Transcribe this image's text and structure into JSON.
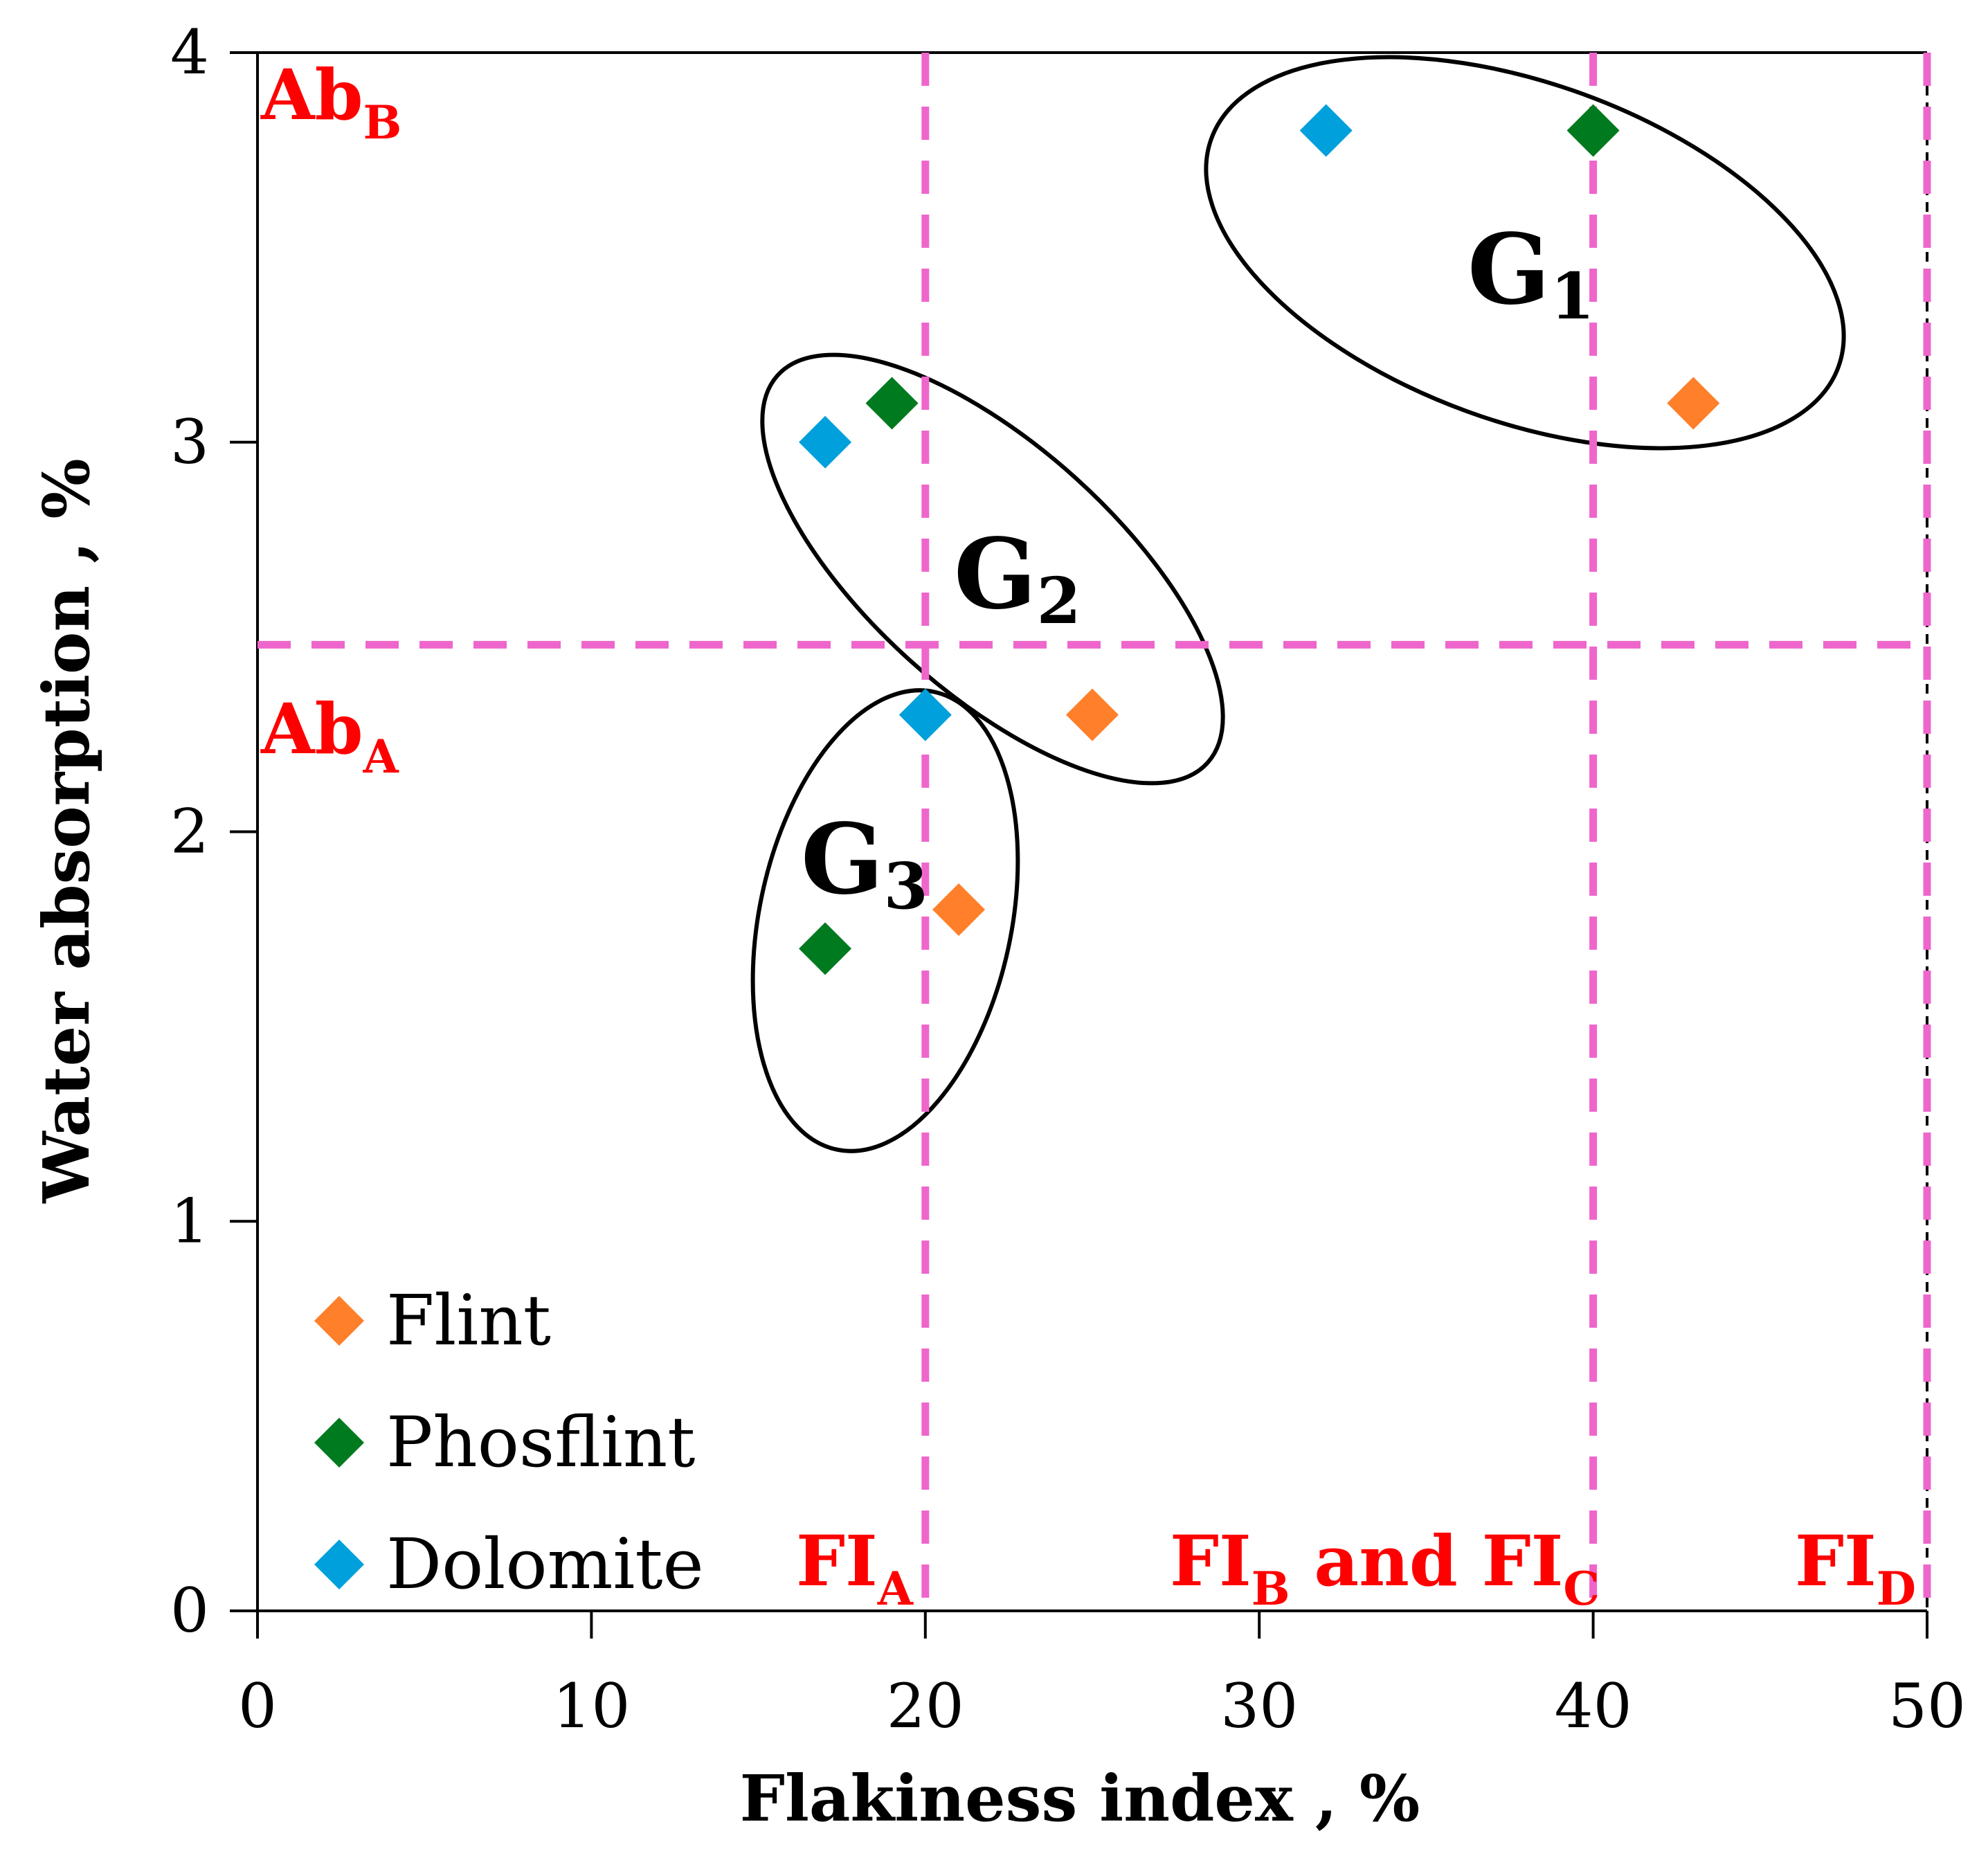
{
  "chart_data": {
    "type": "scatter",
    "xlabel": "Flakiness index , %",
    "ylabel": "Water absorption , %",
    "xlim": [
      0,
      50
    ],
    "ylim": [
      0,
      4
    ],
    "xticks": [
      "0",
      "10",
      "20",
      "30",
      "40",
      "50"
    ],
    "yticks": [
      "0",
      "1",
      "2",
      "3",
      "4"
    ],
    "series": [
      {
        "name": "Flint",
        "color": "#ff7f2a",
        "points": [
          [
            43,
            3.1
          ],
          [
            25,
            2.3
          ],
          [
            21,
            1.8
          ]
        ]
      },
      {
        "name": "Phosflint",
        "color": "#007a1f",
        "points": [
          [
            40,
            3.8
          ],
          [
            19,
            3.1
          ],
          [
            17,
            1.7
          ]
        ]
      },
      {
        "name": "Dolomite",
        "color": "#00a0dc",
        "points": [
          [
            32,
            3.8
          ],
          [
            17,
            3.0
          ],
          [
            20,
            2.3
          ]
        ]
      }
    ],
    "threshold_color": "#ee66cc",
    "label_color": "#ff0000",
    "vertical_thresholds": [
      {
        "x": 20,
        "main": "FI",
        "sub": "A"
      },
      {
        "x": 40,
        "main": "FI",
        "sub_b": "B",
        "joiner": " and FI",
        "sub_c": "C"
      },
      {
        "x": 50,
        "main": "FI",
        "sub": "D"
      }
    ],
    "horizontal_thresholds": [
      {
        "y": 2.48
      }
    ],
    "ab_labels": [
      {
        "main": "Ab",
        "sub": "B"
      },
      {
        "main": "Ab",
        "sub": "A"
      }
    ],
    "groups": [
      {
        "main": "G",
        "sub": "1"
      },
      {
        "main": "G",
        "sub": "2"
      },
      {
        "main": "G",
        "sub": "3"
      }
    ]
  }
}
